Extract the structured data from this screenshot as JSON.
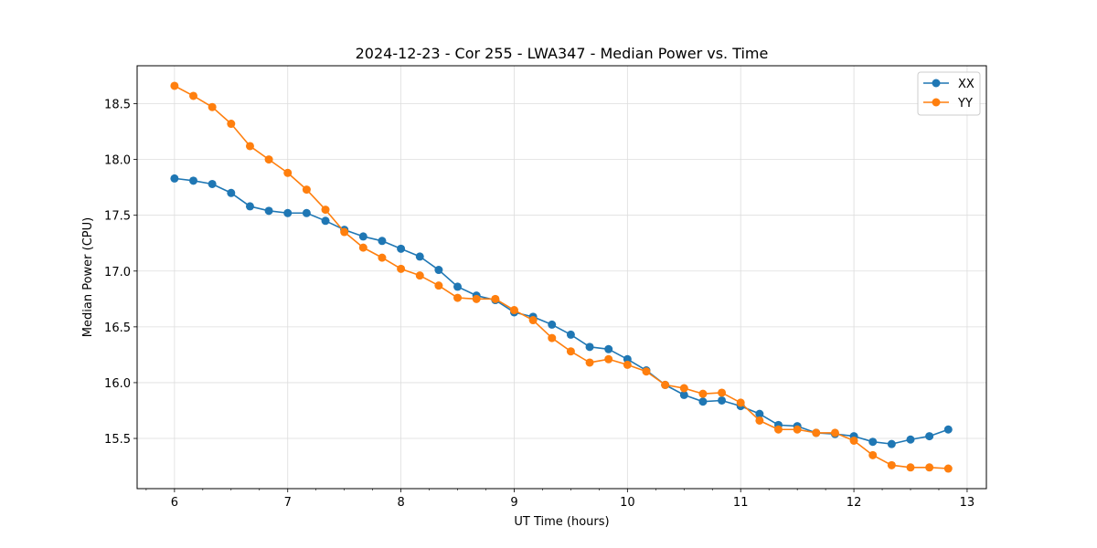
{
  "chart_data": {
    "type": "line",
    "title": "2024-12-23 - Cor 255 - LWA347 - Median Power vs. Time",
    "xlabel": "UT Time (hours)",
    "ylabel": "Median Power (CPU)",
    "xlim": [
      5.67,
      13.17
    ],
    "ylim": [
      15.05,
      18.84
    ],
    "xticks": [
      6,
      7,
      8,
      9,
      10,
      11,
      12,
      13
    ],
    "yticks": [
      15.5,
      16.0,
      16.5,
      17.0,
      17.5,
      18.0,
      18.5
    ],
    "grid": true,
    "legend_position": "top-right",
    "x": [
      6.0,
      6.1667,
      6.3333,
      6.5,
      6.6667,
      6.8333,
      7.0,
      7.1667,
      7.3333,
      7.5,
      7.6667,
      7.8333,
      8.0,
      8.1667,
      8.3333,
      8.5,
      8.6667,
      8.8333,
      9.0,
      9.1667,
      9.3333,
      9.5,
      9.6667,
      9.8333,
      10.0,
      10.1667,
      10.3333,
      10.5,
      10.6667,
      10.8333,
      11.0,
      11.1667,
      11.3333,
      11.5,
      11.6667,
      11.8333,
      12.0,
      12.1667,
      12.3333,
      12.5,
      12.6667,
      12.8333
    ],
    "series": [
      {
        "name": "XX",
        "color": "#1f77b4",
        "values": [
          17.83,
          17.81,
          17.78,
          17.7,
          17.58,
          17.54,
          17.52,
          17.52,
          17.45,
          17.37,
          17.31,
          17.27,
          17.2,
          17.13,
          17.01,
          16.86,
          16.78,
          16.74,
          16.63,
          16.59,
          16.52,
          16.43,
          16.32,
          16.3,
          16.21,
          16.11,
          15.98,
          15.89,
          15.83,
          15.84,
          15.79,
          15.72,
          15.62,
          15.61,
          15.55,
          15.54,
          15.52,
          15.47,
          15.45,
          15.49,
          15.52,
          15.58
        ]
      },
      {
        "name": "YY",
        "color": "#ff7f0e",
        "values": [
          18.66,
          18.57,
          18.47,
          18.32,
          18.12,
          18.0,
          17.88,
          17.73,
          17.55,
          17.35,
          17.21,
          17.12,
          17.02,
          16.96,
          16.87,
          16.76,
          16.75,
          16.75,
          16.65,
          16.56,
          16.4,
          16.28,
          16.18,
          16.21,
          16.16,
          16.1,
          15.98,
          15.95,
          15.9,
          15.91,
          15.82,
          15.66,
          15.58,
          15.58,
          15.55,
          15.55,
          15.48,
          15.35,
          15.26,
          15.24,
          15.24,
          15.23
        ]
      }
    ]
  }
}
